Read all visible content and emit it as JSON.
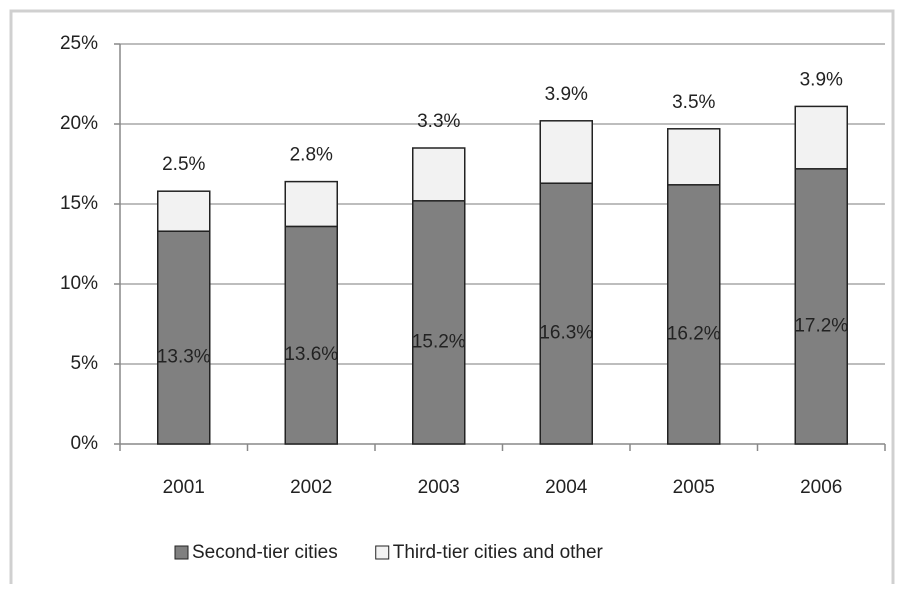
{
  "chart_data": {
    "type": "stacked_bar",
    "categories": [
      "2001",
      "2002",
      "2003",
      "2004",
      "2005",
      "2006"
    ],
    "series": [
      {
        "name": "Second-tier cities",
        "color": "#808080",
        "values": [
          13.3,
          13.6,
          15.2,
          16.3,
          16.2,
          17.2
        ],
        "value_labels": [
          "13.3%",
          "13.6%",
          "15.2%",
          "16.3%",
          "16.2%",
          "17.2%"
        ]
      },
      {
        "name": "Third-tier cities and other",
        "color": "#f2f2f2",
        "values": [
          2.5,
          2.8,
          3.3,
          3.9,
          3.5,
          3.9
        ],
        "value_labels": [
          "2.5%",
          "2.8%",
          "3.3%",
          "3.9%",
          "3.5%",
          "3.9%"
        ]
      }
    ],
    "ylim": [
      0,
      25
    ],
    "yticks": [
      {
        "value": 0,
        "label": "0%"
      },
      {
        "value": 5,
        "label": "5%"
      },
      {
        "value": 10,
        "label": "10%"
      },
      {
        "value": 15,
        "label": "15%"
      },
      {
        "value": 20,
        "label": "20%"
      },
      {
        "value": 25,
        "label": "25%"
      }
    ],
    "grid": true,
    "legend": "bottom"
  }
}
